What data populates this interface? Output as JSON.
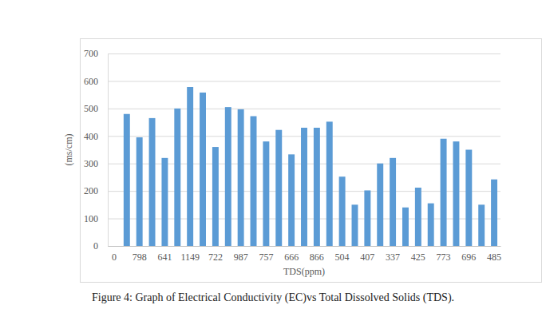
{
  "chart_data": {
    "type": "bar",
    "title": "Figure 4: Graph of Electrical Conductivity (EC)vs Total Dissolved Solids (TDS).",
    "x_label": "TDS(ppm)",
    "y_label": "(ms/cm)",
    "categories": [
      "0",
      null,
      "798",
      null,
      "641",
      null,
      "1149",
      null,
      "722",
      null,
      "987",
      null,
      "757",
      null,
      "666",
      null,
      "866",
      null,
      "504",
      null,
      "407",
      null,
      "337",
      null,
      "425",
      null,
      "773",
      null,
      "696",
      null,
      "485"
    ],
    "values": [
      0,
      480,
      395,
      465,
      320,
      500,
      578,
      558,
      360,
      505,
      497,
      472,
      380,
      422,
      333,
      430,
      430,
      452,
      252,
      150,
      202,
      300,
      320,
      140,
      212,
      155,
      390,
      380,
      350,
      150,
      242
    ],
    "color": "#5b9bd5",
    "ylim": [
      0,
      700
    ],
    "yticks": [
      0,
      100,
      200,
      300,
      400,
      500,
      600,
      700
    ],
    "grid": true
  }
}
